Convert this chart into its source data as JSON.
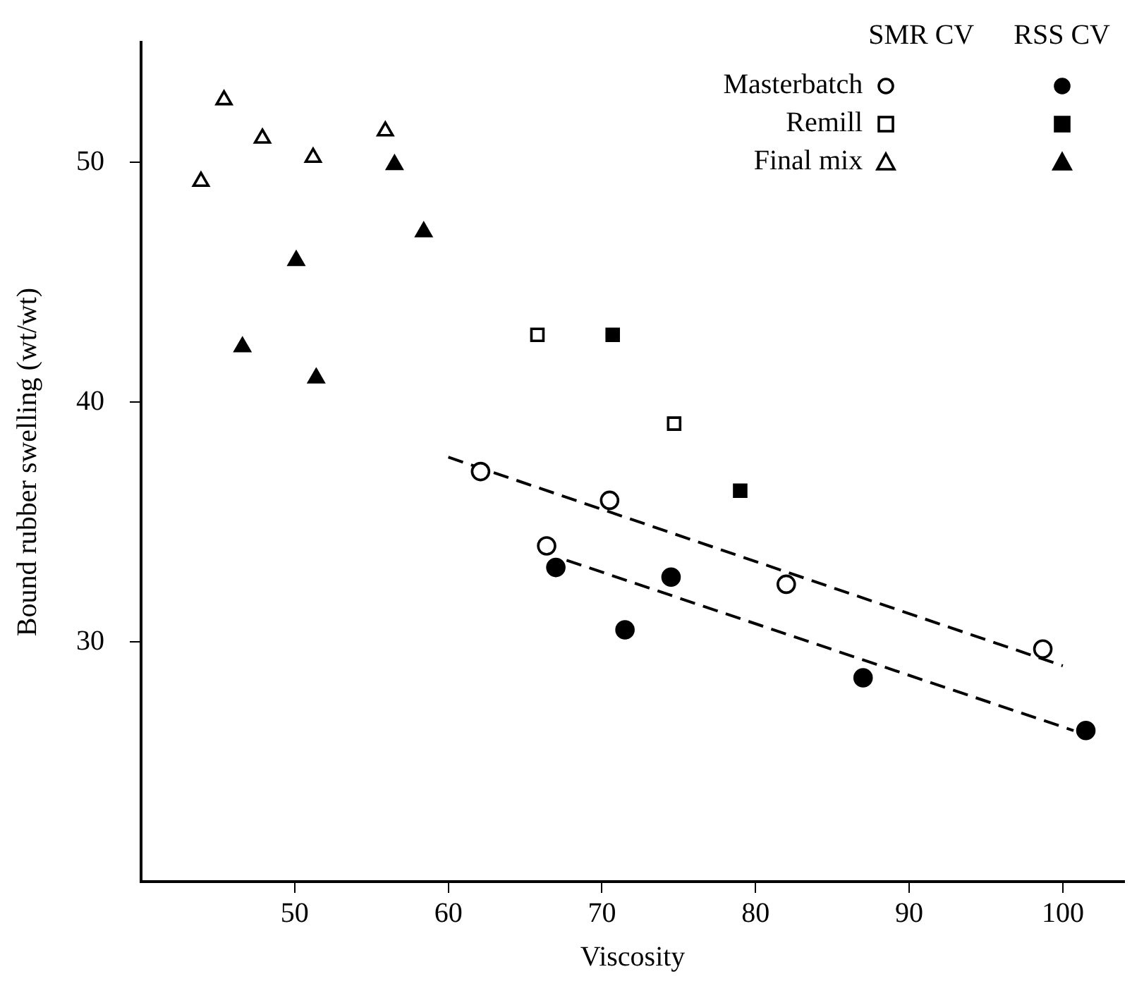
{
  "chart_data": {
    "type": "scatter",
    "xlabel": "Viscosity",
    "ylabel": "Bound rubber swelling (wt/wt)",
    "xlim": [
      40,
      104
    ],
    "xticks": [
      50,
      60,
      70,
      80,
      90,
      100
    ],
    "ylim": [
      20,
      55
    ],
    "yticks": [
      30,
      40,
      50
    ],
    "grid": false,
    "legend": "top right",
    "annotations": [
      "SMR CV",
      "RSS CV"
    ],
    "series": [
      {
        "name": "Masterbatch",
        "color": "#ffffff",
        "marker": "circle",
        "x": [
          62.1,
          70.5,
          66.4,
          82.0,
          98.7
        ],
        "values": [
          37.1,
          35.9,
          34.0,
          32.4,
          29.7
        ]
      },
      {
        "color": "#000000",
        "marker": "circle",
        "x": [
          67.0,
          71.5,
          74.5,
          87.0,
          101.5
        ],
        "values": [
          33.1,
          30.5,
          32.7,
          28.5,
          26.3
        ]
      },
      {
        "name": "Remill",
        "color": "#ffffff",
        "marker": "square",
        "x": [
          65.8,
          74.7
        ],
        "values": [
          42.8,
          39.1
        ]
      },
      {
        "color": "#000000",
        "marker": "square",
        "x": [
          70.7,
          79.0
        ],
        "values": [
          42.8,
          36.3
        ]
      },
      {
        "name": "Final mix",
        "color": "#ffffff",
        "marker": "triangle",
        "x": [
          45.4,
          47.9,
          43.9,
          51.2,
          55.9
        ],
        "values": [
          52.6,
          51.0,
          49.2,
          50.2,
          51.3
        ]
      },
      {
        "color": "#000000",
        "marker": "triangle",
        "x": [
          56.5,
          58.4,
          50.1,
          46.6,
          51.4
        ],
        "values": [
          49.9,
          47.1,
          45.9,
          42.3,
          41.0
        ]
      },
      {
        "type": "line",
        "color": "#000000",
        "line_style": "dashed",
        "marker": "none",
        "x": [
          60,
          100
        ],
        "values": [
          37.7,
          29.0
        ]
      },
      {
        "type": "line",
        "color": "#000000",
        "line_style": "dashed",
        "marker": "none",
        "x": [
          67.7,
          100.7
        ],
        "values": [
          33.4,
          26.3
        ]
      }
    ]
  }
}
